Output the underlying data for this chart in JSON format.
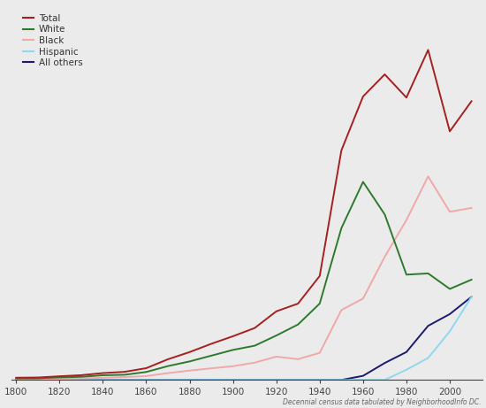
{
  "years": [
    1800,
    1810,
    1820,
    1830,
    1840,
    1850,
    1860,
    1870,
    1880,
    1890,
    1900,
    1910,
    1920,
    1930,
    1940,
    1950,
    1960,
    1970,
    1980,
    1990,
    2000,
    2010
  ],
  "total": [
    14093,
    15471,
    23336,
    30261,
    43712,
    51687,
    75080,
    131700,
    177624,
    230392,
    278718,
    331069,
    437571,
    486869,
    663091,
    1464089,
    1808423,
    1949088,
    1801131,
    2105080,
    1585577,
    1777816
  ],
  "white": [
    10066,
    10425,
    16079,
    20062,
    29730,
    32966,
    50758,
    88278,
    118006,
    154695,
    191532,
    218196,
    283200,
    353673,
    487044,
    967867,
    1263400,
    1055450,
    671591,
    679427,
    580543,
    639624
  ],
  "black": [
    4027,
    5046,
    7073,
    9943,
    13813,
    18231,
    24322,
    43404,
    59596,
    73967,
    87676,
    110084,
    148550,
    132542,
    172610,
    445756,
    518920,
    785855,
    1019984,
    1298413,
    1072400,
    1097396
  ],
  "hispanic": [
    0,
    0,
    0,
    0,
    0,
    0,
    0,
    0,
    0,
    0,
    0,
    0,
    0,
    0,
    0,
    0,
    0,
    0,
    65000,
    140000,
    310000,
    530000
  ],
  "all_others": [
    0,
    0,
    0,
    0,
    0,
    0,
    0,
    0,
    0,
    0,
    0,
    0,
    0,
    0,
    0,
    0,
    26103,
    108000,
    178000,
    345000,
    420000,
    530000
  ],
  "colors": {
    "total": "#a52020",
    "white": "#2d7a2d",
    "black": "#f0a8a8",
    "hispanic": "#90d8f0",
    "all_others": "#1a1a6e"
  },
  "legend_labels": {
    "total": "Total",
    "white": "White",
    "black": "Black",
    "hispanic": "Hispanic",
    "all_others": "All others"
  },
  "xticks": [
    1800,
    1820,
    1840,
    1860,
    1880,
    1900,
    1920,
    1940,
    1960,
    1980,
    2000
  ],
  "ylim_max": 2400000,
  "xlim": [
    1798,
    2015
  ],
  "footnote": "Decennial census data tabulated by NeighborhoodInfo DC.",
  "background_color": "#ebebeb",
  "linewidth": 1.4
}
